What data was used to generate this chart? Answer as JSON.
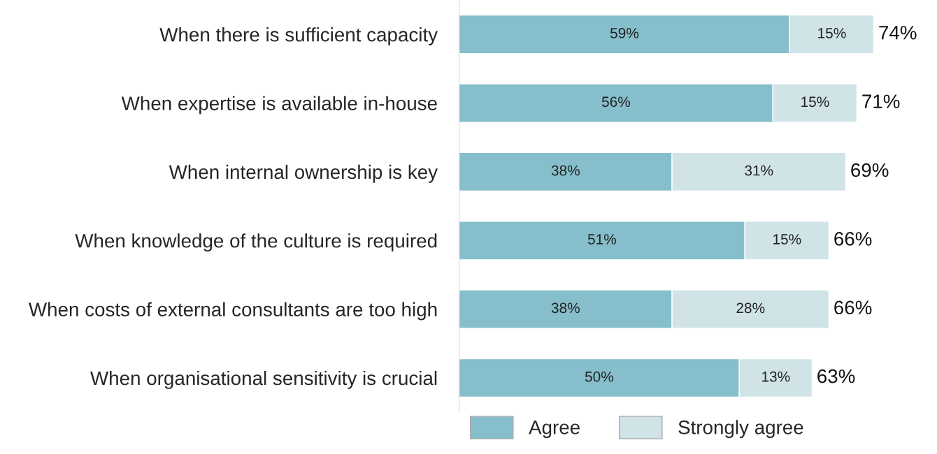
{
  "chart_data": {
    "type": "bar",
    "orientation": "horizontal",
    "stacked": true,
    "categories": [
      "When there is sufficient capacity",
      "When expertise is available in-house",
      "When internal ownership is key",
      "When knowledge of the culture is required",
      "When costs of external consultants are too high",
      "When organisational sensitivity is crucial"
    ],
    "series": [
      {
        "name": "Agree",
        "color": "#86bfcb",
        "values": [
          59,
          56,
          38,
          51,
          38,
          50
        ],
        "value_labels": [
          "59%",
          "56%",
          "38%",
          "51%",
          "38%",
          "50%"
        ]
      },
      {
        "name": "Strongly agree",
        "color": "#d0e4e8",
        "values": [
          15,
          15,
          31,
          15,
          28,
          13
        ],
        "value_labels": [
          "15%",
          "15%",
          "31%",
          "15%",
          "28%",
          "13%"
        ]
      }
    ],
    "totals": [
      "74%",
      "71%",
      "69%",
      "66%",
      "66%",
      "63%"
    ],
    "legend": "bottom",
    "grid": false,
    "tick_labels": "y"
  }
}
